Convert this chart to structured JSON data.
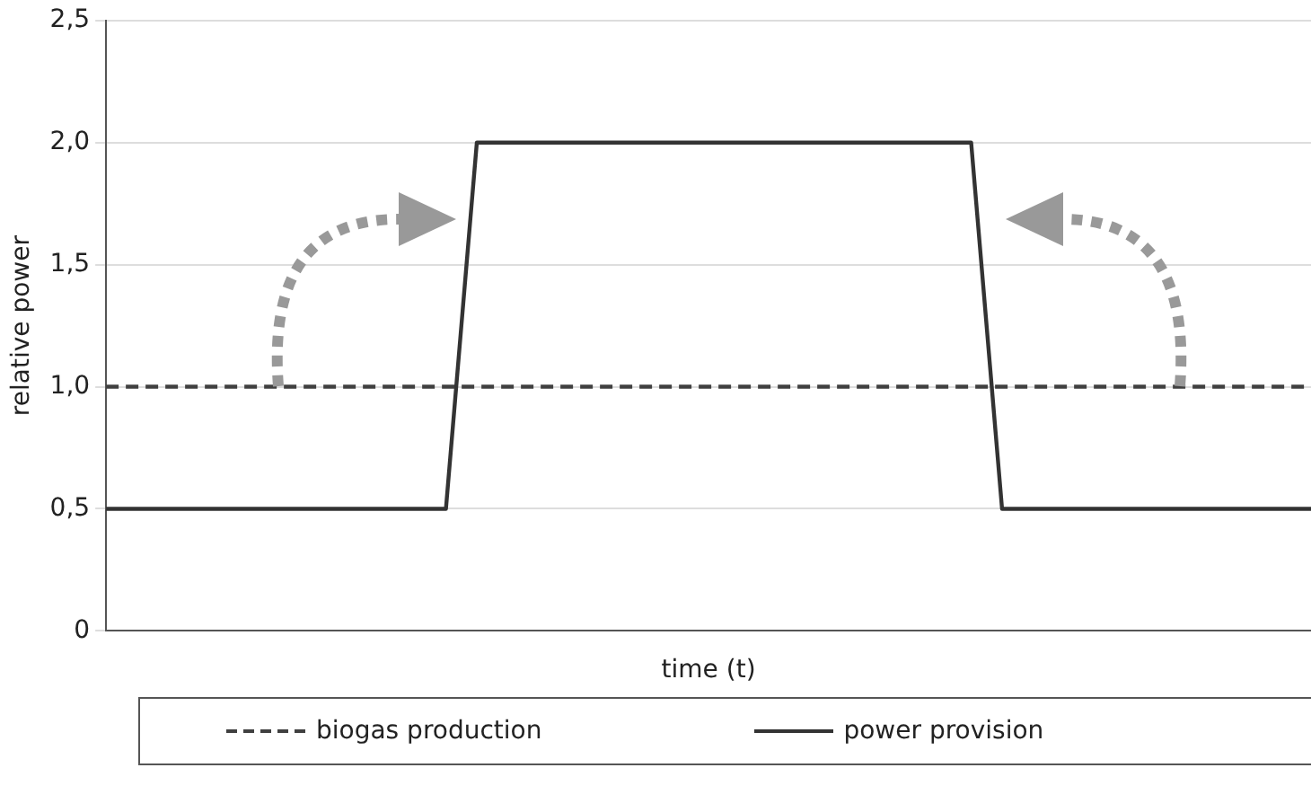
{
  "chart_data": {
    "type": "line",
    "xlabel": "time (t)",
    "ylabel": "relative power",
    "categories": [
      null,
      null,
      null,
      null,
      null,
      null,
      null,
      null,
      null,
      null,
      null,
      null,
      null,
      null,
      null,
      null,
      null,
      null,
      null,
      null,
      null,
      null,
      null,
      null,
      null,
      null,
      null,
      null,
      null,
      null,
      null,
      null,
      null,
      null,
      null,
      null,
      null,
      null,
      null,
      null
    ],
    "ylim": [
      0,
      2.5
    ],
    "yticks": [
      0,
      {
        "value": 0.5,
        "label": "0,5"
      },
      {
        "value": 1,
        "label": "1,0"
      },
      {
        "value": 1.5,
        "label": "1,5"
      },
      {
        "value": 2,
        "label": "2,0"
      },
      {
        "value": 2.5,
        "label": "2,5"
      }
    ],
    "tick_labels": "y",
    "grid": "y",
    "legend": "bottom",
    "marker": "none",
    "series": [
      {
        "name": "biogas production",
        "color": "#404040",
        "line_style": "dashed",
        "values": [
          1,
          1,
          1,
          1,
          1,
          1,
          1,
          1,
          1,
          1,
          1,
          1,
          1,
          1,
          1,
          1,
          1,
          1,
          1,
          1,
          1,
          1,
          1,
          1,
          1,
          1,
          1,
          1,
          1,
          1,
          1,
          1,
          1,
          1,
          1,
          1,
          1,
          1,
          1,
          1
        ]
      },
      {
        "name": "power provision",
        "color": "#333333",
        "line_style": "solid",
        "values": [
          0.5,
          0.5,
          0.5,
          0.5,
          0.5,
          0.5,
          0.5,
          0.5,
          0.5,
          0.5,
          0.5,
          0.5,
          2,
          2,
          2,
          2,
          2,
          2,
          2,
          2,
          2,
          2,
          2,
          2,
          2,
          2,
          2,
          2,
          2,
          0.5,
          0.5,
          0.5,
          0.5,
          0.5,
          0.5,
          0.5,
          0.5,
          0.5,
          0.5,
          0.5
        ]
      }
    ]
  }
}
